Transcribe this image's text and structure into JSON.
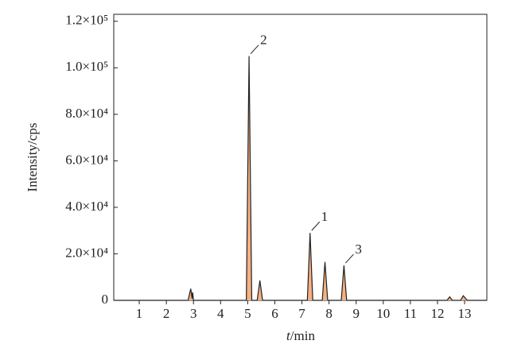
{
  "chart_data": {
    "type": "line",
    "xlabel": "t/min",
    "ylabel": "Intensity/cps",
    "x": [
      0.06,
      2.8,
      2.9,
      2.95,
      2.97,
      3.0,
      4.95,
      5.05,
      5.15,
      5.35,
      5.45,
      5.55,
      7.2,
      7.3,
      7.4,
      7.75,
      7.85,
      7.95,
      8.45,
      8.55,
      8.65,
      12.35,
      12.45,
      12.55,
      12.85,
      12.95,
      13.1,
      13.82
    ],
    "series": [
      {
        "color": "#f4b183",
        "values": [
          0,
          0,
          5000,
          800,
          3500,
          0,
          0,
          105000,
          0,
          0,
          8500,
          0,
          0,
          29000,
          0,
          0,
          16500,
          0,
          0,
          15000,
          0,
          0,
          1500,
          0,
          0,
          2000,
          0,
          0
        ]
      }
    ],
    "annotations": [
      {
        "text": "2",
        "x": 5.05,
        "y": 105000
      },
      {
        "text": "1",
        "x": 7.3,
        "y": 29000
      },
      {
        "text": "3",
        "x": 8.55,
        "y": 15000
      }
    ],
    "xlim": [
      0.06,
      13.82
    ],
    "ylim": [
      0,
      123000
    ],
    "xticks": [
      1,
      2,
      3,
      4,
      5,
      6,
      7,
      8,
      9,
      10,
      11,
      12,
      13
    ],
    "yticks": [
      0,
      {
        "value": 20000,
        "label": "2.0×10⁴"
      },
      {
        "value": 40000,
        "label": "4.0×10⁴"
      },
      {
        "value": 60000,
        "label": "6.0×10⁴"
      },
      {
        "value": 80000,
        "label": "8.0×10⁴"
      },
      {
        "value": 100000,
        "label": "1.0×10⁵"
      },
      {
        "value": 120000,
        "label": "1.2×10⁵"
      }
    ]
  }
}
